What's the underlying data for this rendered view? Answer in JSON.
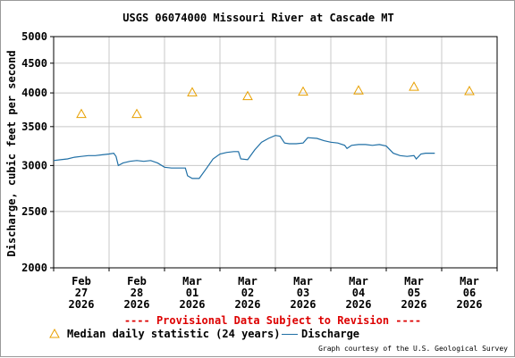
{
  "chart_data": {
    "type": "line",
    "title": "USGS 06074000 Missouri River at Cascade MT",
    "ylabel": "Discharge, cubic feet per second",
    "ylim": [
      2000,
      5000
    ],
    "y_scale": "log",
    "yticks": [
      {
        "value": 2000,
        "label": "2000"
      },
      {
        "value": 2500,
        "label": "2500"
      },
      {
        "value": 3000,
        "label": "3000"
      },
      {
        "value": 3500,
        "label": "3500"
      },
      {
        "value": 4000,
        "label": "4000"
      },
      {
        "value": 4500,
        "label": "4500"
      },
      {
        "value": 5000,
        "label": "5000"
      }
    ],
    "xlim": [
      "2026-02-27T00:00",
      "2026-03-07T00:00"
    ],
    "xticks": [
      {
        "x": "2026-02-27T12:00",
        "month": "Feb",
        "day": "27",
        "year": "2026"
      },
      {
        "x": "2026-02-28T12:00",
        "month": "Feb",
        "day": "28",
        "year": "2026"
      },
      {
        "x": "2026-03-01T12:00",
        "month": "Mar",
        "day": "01",
        "year": "2026"
      },
      {
        "x": "2026-03-02T12:00",
        "month": "Mar",
        "day": "02",
        "year": "2026"
      },
      {
        "x": "2026-03-03T12:00",
        "month": "Mar",
        "day": "03",
        "year": "2026"
      },
      {
        "x": "2026-03-04T12:00",
        "month": "Mar",
        "day": "04",
        "year": "2026"
      },
      {
        "x": "2026-03-05T12:00",
        "month": "Mar",
        "day": "05",
        "year": "2026"
      },
      {
        "x": "2026-03-06T12:00",
        "month": "Mar",
        "day": "06",
        "year": "2026"
      }
    ],
    "grid": true,
    "legend_placement": "bottom",
    "series": [
      {
        "name": "Discharge",
        "color": "#1f6fa5",
        "marker": "line",
        "points": [
          {
            "x": "2026-02-27T00:00",
            "y": 3060
          },
          {
            "x": "2026-02-27T03:00",
            "y": 3070
          },
          {
            "x": "2026-02-27T06:00",
            "y": 3080
          },
          {
            "x": "2026-02-27T09:00",
            "y": 3100
          },
          {
            "x": "2026-02-27T12:00",
            "y": 3110
          },
          {
            "x": "2026-02-27T15:00",
            "y": 3120
          },
          {
            "x": "2026-02-27T18:00",
            "y": 3120
          },
          {
            "x": "2026-02-27T21:00",
            "y": 3130
          },
          {
            "x": "2026-02-28T00:00",
            "y": 3140
          },
          {
            "x": "2026-02-28T02:00",
            "y": 3150
          },
          {
            "x": "2026-02-28T03:00",
            "y": 3110
          },
          {
            "x": "2026-02-28T04:00",
            "y": 3000
          },
          {
            "x": "2026-02-28T06:00",
            "y": 3030
          },
          {
            "x": "2026-02-28T09:00",
            "y": 3050
          },
          {
            "x": "2026-02-28T12:00",
            "y": 3060
          },
          {
            "x": "2026-02-28T15:00",
            "y": 3050
          },
          {
            "x": "2026-02-28T18:00",
            "y": 3060
          },
          {
            "x": "2026-02-28T21:00",
            "y": 3030
          },
          {
            "x": "2026-03-01T00:00",
            "y": 2980
          },
          {
            "x": "2026-03-01T03:00",
            "y": 2970
          },
          {
            "x": "2026-03-01T06:00",
            "y": 2970
          },
          {
            "x": "2026-03-01T09:00",
            "y": 2970
          },
          {
            "x": "2026-03-01T10:00",
            "y": 2880
          },
          {
            "x": "2026-03-01T12:00",
            "y": 2850
          },
          {
            "x": "2026-03-01T15:00",
            "y": 2850
          },
          {
            "x": "2026-03-01T18:00",
            "y": 2960
          },
          {
            "x": "2026-03-01T21:00",
            "y": 3080
          },
          {
            "x": "2026-03-02T00:00",
            "y": 3140
          },
          {
            "x": "2026-03-02T03:00",
            "y": 3160
          },
          {
            "x": "2026-03-02T06:00",
            "y": 3170
          },
          {
            "x": "2026-03-02T08:00",
            "y": 3170
          },
          {
            "x": "2026-03-02T09:00",
            "y": 3080
          },
          {
            "x": "2026-03-02T12:00",
            "y": 3070
          },
          {
            "x": "2026-03-02T15:00",
            "y": 3190
          },
          {
            "x": "2026-03-02T18:00",
            "y": 3290
          },
          {
            "x": "2026-03-02T21:00",
            "y": 3340
          },
          {
            "x": "2026-03-03T00:00",
            "y": 3380
          },
          {
            "x": "2026-03-03T02:00",
            "y": 3370
          },
          {
            "x": "2026-03-03T04:00",
            "y": 3280
          },
          {
            "x": "2026-03-03T06:00",
            "y": 3270
          },
          {
            "x": "2026-03-03T09:00",
            "y": 3270
          },
          {
            "x": "2026-03-03T12:00",
            "y": 3280
          },
          {
            "x": "2026-03-03T14:00",
            "y": 3350
          },
          {
            "x": "2026-03-03T18:00",
            "y": 3340
          },
          {
            "x": "2026-03-03T21:00",
            "y": 3310
          },
          {
            "x": "2026-03-04T00:00",
            "y": 3290
          },
          {
            "x": "2026-03-04T03:00",
            "y": 3280
          },
          {
            "x": "2026-03-04T06:00",
            "y": 3250
          },
          {
            "x": "2026-03-04T07:00",
            "y": 3210
          },
          {
            "x": "2026-03-04T09:00",
            "y": 3250
          },
          {
            "x": "2026-03-04T12:00",
            "y": 3260
          },
          {
            "x": "2026-03-04T15:00",
            "y": 3260
          },
          {
            "x": "2026-03-04T18:00",
            "y": 3250
          },
          {
            "x": "2026-03-04T21:00",
            "y": 3260
          },
          {
            "x": "2026-03-05T00:00",
            "y": 3240
          },
          {
            "x": "2026-03-05T03:00",
            "y": 3150
          },
          {
            "x": "2026-03-05T06:00",
            "y": 3120
          },
          {
            "x": "2026-03-05T09:00",
            "y": 3110
          },
          {
            "x": "2026-03-05T12:00",
            "y": 3120
          },
          {
            "x": "2026-03-05T13:00",
            "y": 3080
          },
          {
            "x": "2026-03-05T15:00",
            "y": 3140
          },
          {
            "x": "2026-03-05T17:00",
            "y": 3150
          },
          {
            "x": "2026-03-05T21:00",
            "y": 3150
          }
        ]
      },
      {
        "name": "Median daily statistic (24 years)",
        "color": "#e8a000",
        "marker": "triangle",
        "points": [
          {
            "x": "2026-02-27T12:00",
            "y": 3680
          },
          {
            "x": "2026-02-28T12:00",
            "y": 3680
          },
          {
            "x": "2026-03-01T12:00",
            "y": 4010
          },
          {
            "x": "2026-03-02T12:00",
            "y": 3950
          },
          {
            "x": "2026-03-03T12:00",
            "y": 4020
          },
          {
            "x": "2026-03-04T12:00",
            "y": 4040
          },
          {
            "x": "2026-03-05T12:00",
            "y": 4100
          },
          {
            "x": "2026-03-06T12:00",
            "y": 4030
          }
        ]
      }
    ],
    "annotation": "---- Provisional Data Subject to Revision ----",
    "credit": "Graph courtesy of the U.S. Geological Survey"
  },
  "colors": {
    "grid": "#c8c8c8",
    "axis": "#000000",
    "discharge": "#1f6fa5",
    "median": "#e8a000",
    "provisional": "#dd0000"
  }
}
